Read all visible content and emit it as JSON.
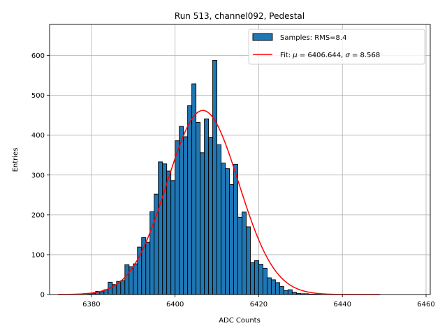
{
  "chart_data": {
    "type": "bar",
    "title": "Run 513, channel092, Pedestal",
    "xlabel": "ADC Counts",
    "ylabel": "Entries",
    "xlim": [
      6370,
      6461
    ],
    "ylim": [
      0,
      678
    ],
    "x_ticks": [
      6380,
      6400,
      6420,
      6440,
      6460
    ],
    "y_ticks": [
      0,
      100,
      200,
      300,
      400,
      500,
      600
    ],
    "grid": true,
    "legend_position": "upper right",
    "bin_width": 1,
    "bin_starts": [
      6379,
      6380,
      6381,
      6382,
      6383,
      6384,
      6385,
      6386,
      6387,
      6388,
      6389,
      6390,
      6391,
      6392,
      6393,
      6394,
      6395,
      6396,
      6397,
      6398,
      6399,
      6400,
      6401,
      6402,
      6403,
      6404,
      6405,
      6406,
      6407,
      6408,
      6409,
      6410,
      6411,
      6412,
      6413,
      6414,
      6415,
      6416,
      6417,
      6418,
      6419,
      6420,
      6421,
      6422,
      6423,
      6424,
      6425,
      6426,
      6427,
      6428,
      6429,
      6430,
      6431,
      6432,
      6433,
      6434
    ],
    "counts": [
      1,
      3,
      8,
      7,
      12,
      31,
      25,
      33,
      35,
      75,
      70,
      77,
      119,
      143,
      131,
      208,
      252,
      333,
      328,
      310,
      286,
      386,
      422,
      396,
      474,
      529,
      432,
      356,
      441,
      395,
      588,
      376,
      330,
      316,
      276,
      327,
      194,
      207,
      170,
      80,
      85,
      76,
      66,
      42,
      37,
      30,
      20,
      10,
      12,
      6,
      3,
      2,
      2,
      1,
      1,
      1
    ],
    "series": [
      {
        "name": "Samples: RMS=8.4",
        "kind": "histogram",
        "color": "#1f77b4",
        "edgecolor": "#000000"
      },
      {
        "name": "Fit: μ = 6406.644, σ = 8.568",
        "kind": "gaussian-fit",
        "color": "#ff0000",
        "amplitude": 462,
        "mu": 6406.644,
        "sigma": 8.568,
        "x_range": [
          6372,
          6449
        ]
      }
    ]
  },
  "legend": {
    "samples_label": "Samples: RMS=8.4",
    "fit_label_prefix": "Fit: ",
    "fit_mu_symbol": "μ",
    "fit_mu_value": " = 6406.644, ",
    "fit_sigma_symbol": "σ",
    "fit_sigma_value": " = 8.568"
  }
}
